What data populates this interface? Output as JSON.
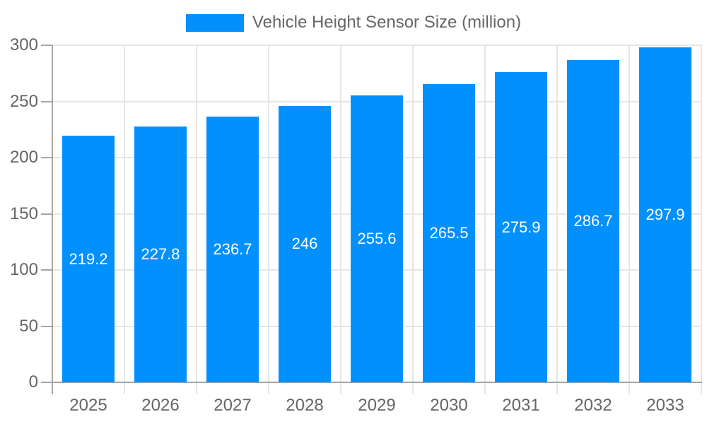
{
  "chart_data": {
    "type": "bar",
    "title": "Vehicle Height Sensor Size (million)",
    "categories": [
      "2025",
      "2026",
      "2027",
      "2028",
      "2029",
      "2030",
      "2031",
      "2032",
      "2033"
    ],
    "values": [
      219.2,
      227.8,
      236.7,
      246,
      255.6,
      265.5,
      275.9,
      286.7,
      297.9
    ],
    "value_labels": [
      "219.2",
      "227.8",
      "236.7",
      "246",
      "255.6",
      "265.5",
      "275.9",
      "286.7",
      "297.9"
    ],
    "xlabel": "",
    "ylabel": "",
    "ylim": [
      0,
      300
    ],
    "yticks": [
      0,
      50,
      100,
      150,
      200,
      250,
      300
    ],
    "grid": true,
    "legend_position": "top",
    "colors": {
      "bar": "#0190fc",
      "grid": "#e6e6e6",
      "axis": "#a6a6a6",
      "tick_label": "#666666",
      "value_label": "#ffffff",
      "legend_text": "#666666",
      "background": "#ffffff"
    }
  }
}
